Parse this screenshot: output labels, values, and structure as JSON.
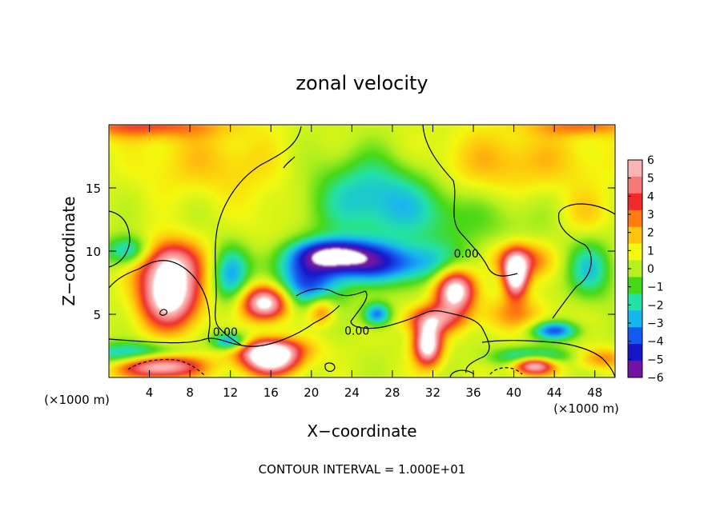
{
  "chart_data": {
    "type": "heatmap",
    "title": "zonal velocity",
    "xlabel": "X−coordinate",
    "ylabel": "Z−coordinate",
    "x_unit_left": "(×1000 m)",
    "x_unit_right": "(×1000 m)",
    "footer": "CONTOUR INTERVAL = 1.000E+01",
    "xlim": [
      0,
      50
    ],
    "ylim": [
      0,
      20
    ],
    "x_ticks": [
      4,
      8,
      12,
      16,
      20,
      24,
      28,
      32,
      36,
      40,
      44,
      48
    ],
    "y_ticks": [
      5,
      10,
      15
    ],
    "colorbar": {
      "min": -6,
      "max": 6,
      "ticks": [
        6,
        5,
        4,
        3,
        2,
        1,
        0,
        -1,
        -2,
        -3,
        -4,
        -5,
        -6
      ],
      "tick_labels": [
        "6",
        "5",
        "4",
        "3",
        "2",
        "1",
        "0",
        "−1",
        "−2",
        "−3",
        "−4",
        "−5",
        "−6"
      ],
      "colors": [
        "#fbb3b3",
        "#f67878",
        "#ee2a2a",
        "#ff7a10",
        "#ffc410",
        "#f4f810",
        "#b6f020",
        "#46d818",
        "#23e2a5",
        "#19b5f0",
        "#125bf0",
        "#1616c8",
        "#7413a2"
      ]
    },
    "contour_labels": [
      {
        "text": "0.00",
        "x": 11.5,
        "z": 3.6
      },
      {
        "text": "0.00",
        "x": 24.5,
        "z": 3.7
      },
      {
        "text": "0.00",
        "x": 35.3,
        "z": 9.8
      }
    ],
    "features": [
      {
        "value": 7.5,
        "x": 6,
        "z": 6.5,
        "rx": 3.2,
        "rz": 2.8
      },
      {
        "value": 7.5,
        "x": 15.5,
        "z": 5.9,
        "rx": 2.5,
        "rz": 1.5
      },
      {
        "value": 7.5,
        "x": 34.2,
        "z": 6.9,
        "rx": 2.1,
        "rz": 1.9
      },
      {
        "value": 7.5,
        "x": 40.2,
        "z": 8,
        "rx": 1.3,
        "rz": 1.8
      },
      {
        "value": 7.5,
        "x": 5,
        "z": 1,
        "rx": 4.5,
        "rz": 1.1
      },
      {
        "value": 7.5,
        "x": 16,
        "z": 1.4,
        "rx": 3,
        "rz": 1.3
      },
      {
        "value": 7.5,
        "x": 31.5,
        "z": 2.6,
        "rx": 1.5,
        "rz": 1.8
      },
      {
        "value": 7.5,
        "x": 42,
        "z": 1,
        "rx": 2.2,
        "rz": 0.8
      },
      {
        "value": -4.8,
        "x": 26,
        "z": 9,
        "rx": 9,
        "rz": 1.8
      },
      {
        "value": -4.5,
        "x": 22,
        "z": 9.8,
        "rx": 4,
        "rz": 1.3
      },
      {
        "value": -3.8,
        "x": 19.5,
        "z": 7,
        "rx": 3.5,
        "rz": 2
      },
      {
        "value": -3.2,
        "x": 12,
        "z": 8,
        "rx": 2,
        "rz": 2.5
      },
      {
        "value": -3.6,
        "x": 2,
        "z": 10,
        "rx": 2.5,
        "rz": 1.3
      },
      {
        "value": -4.6,
        "x": 3,
        "z": 1.8,
        "rx": 5.5,
        "rz": 1
      },
      {
        "value": -4.8,
        "x": 12,
        "z": 2.8,
        "rx": 2,
        "rz": 0.8
      },
      {
        "value": -4.5,
        "x": 44,
        "z": 3.7,
        "rx": 2.5,
        "rz": 0.8
      },
      {
        "value": -4.2,
        "x": 42,
        "z": 1.6,
        "rx": 4,
        "rz": 0.8
      },
      {
        "value": -2.4,
        "x": 30,
        "z": 13,
        "rx": 12,
        "rz": 3
      },
      {
        "value": -2,
        "x": 26,
        "z": 15.5,
        "rx": 6,
        "rz": 3
      },
      {
        "value": 4.2,
        "x": 6,
        "z": 9.2,
        "rx": 3.5,
        "rz": 2
      },
      {
        "value": 4.2,
        "x": 40.5,
        "z": 9.3,
        "rx": 3,
        "rz": 1.5
      },
      {
        "value": 3.8,
        "x": 15.5,
        "z": 2.3,
        "rx": 4.5,
        "rz": 1
      },
      {
        "value": 4.2,
        "x": 32,
        "z": 4.6,
        "rx": 3,
        "rz": 1.2
      },
      {
        "value": 3.2,
        "x": 21,
        "z": 5.3,
        "rx": 1.5,
        "rz": 1.2
      },
      {
        "value": 2.5,
        "x": 48.5,
        "z": 1.5,
        "rx": 3,
        "rz": 0.9
      },
      {
        "value": 2,
        "x": 40,
        "z": 5,
        "rx": 4,
        "rz": 1.5
      },
      {
        "value": 3.2,
        "x": 3,
        "z": 20,
        "rx": 9,
        "rz": 1.2
      },
      {
        "value": 2.6,
        "x": 47,
        "z": 20,
        "rx": 6,
        "rz": 1
      },
      {
        "value": 1.8,
        "x": 40,
        "z": 17,
        "rx": 10,
        "rz": 3
      },
      {
        "value": 1.5,
        "x": 10,
        "z": 17,
        "rx": 8,
        "rz": 3
      },
      {
        "value": 1.3,
        "x": 47,
        "z": 13,
        "rx": 3,
        "rz": 2
      },
      {
        "value": 0.7,
        "x": 36,
        "z": 14,
        "rx": 4,
        "rz": 3
      },
      {
        "value": 0.9,
        "x": 16,
        "z": 13,
        "rx": 4,
        "rz": 3
      },
      {
        "value": -4.4,
        "x": 26.5,
        "z": 5,
        "rx": 1.5,
        "rz": 1
      },
      {
        "value": -2.8,
        "x": 47.5,
        "z": 8.5,
        "rx": 2.5,
        "rz": 2.5
      }
    ]
  }
}
